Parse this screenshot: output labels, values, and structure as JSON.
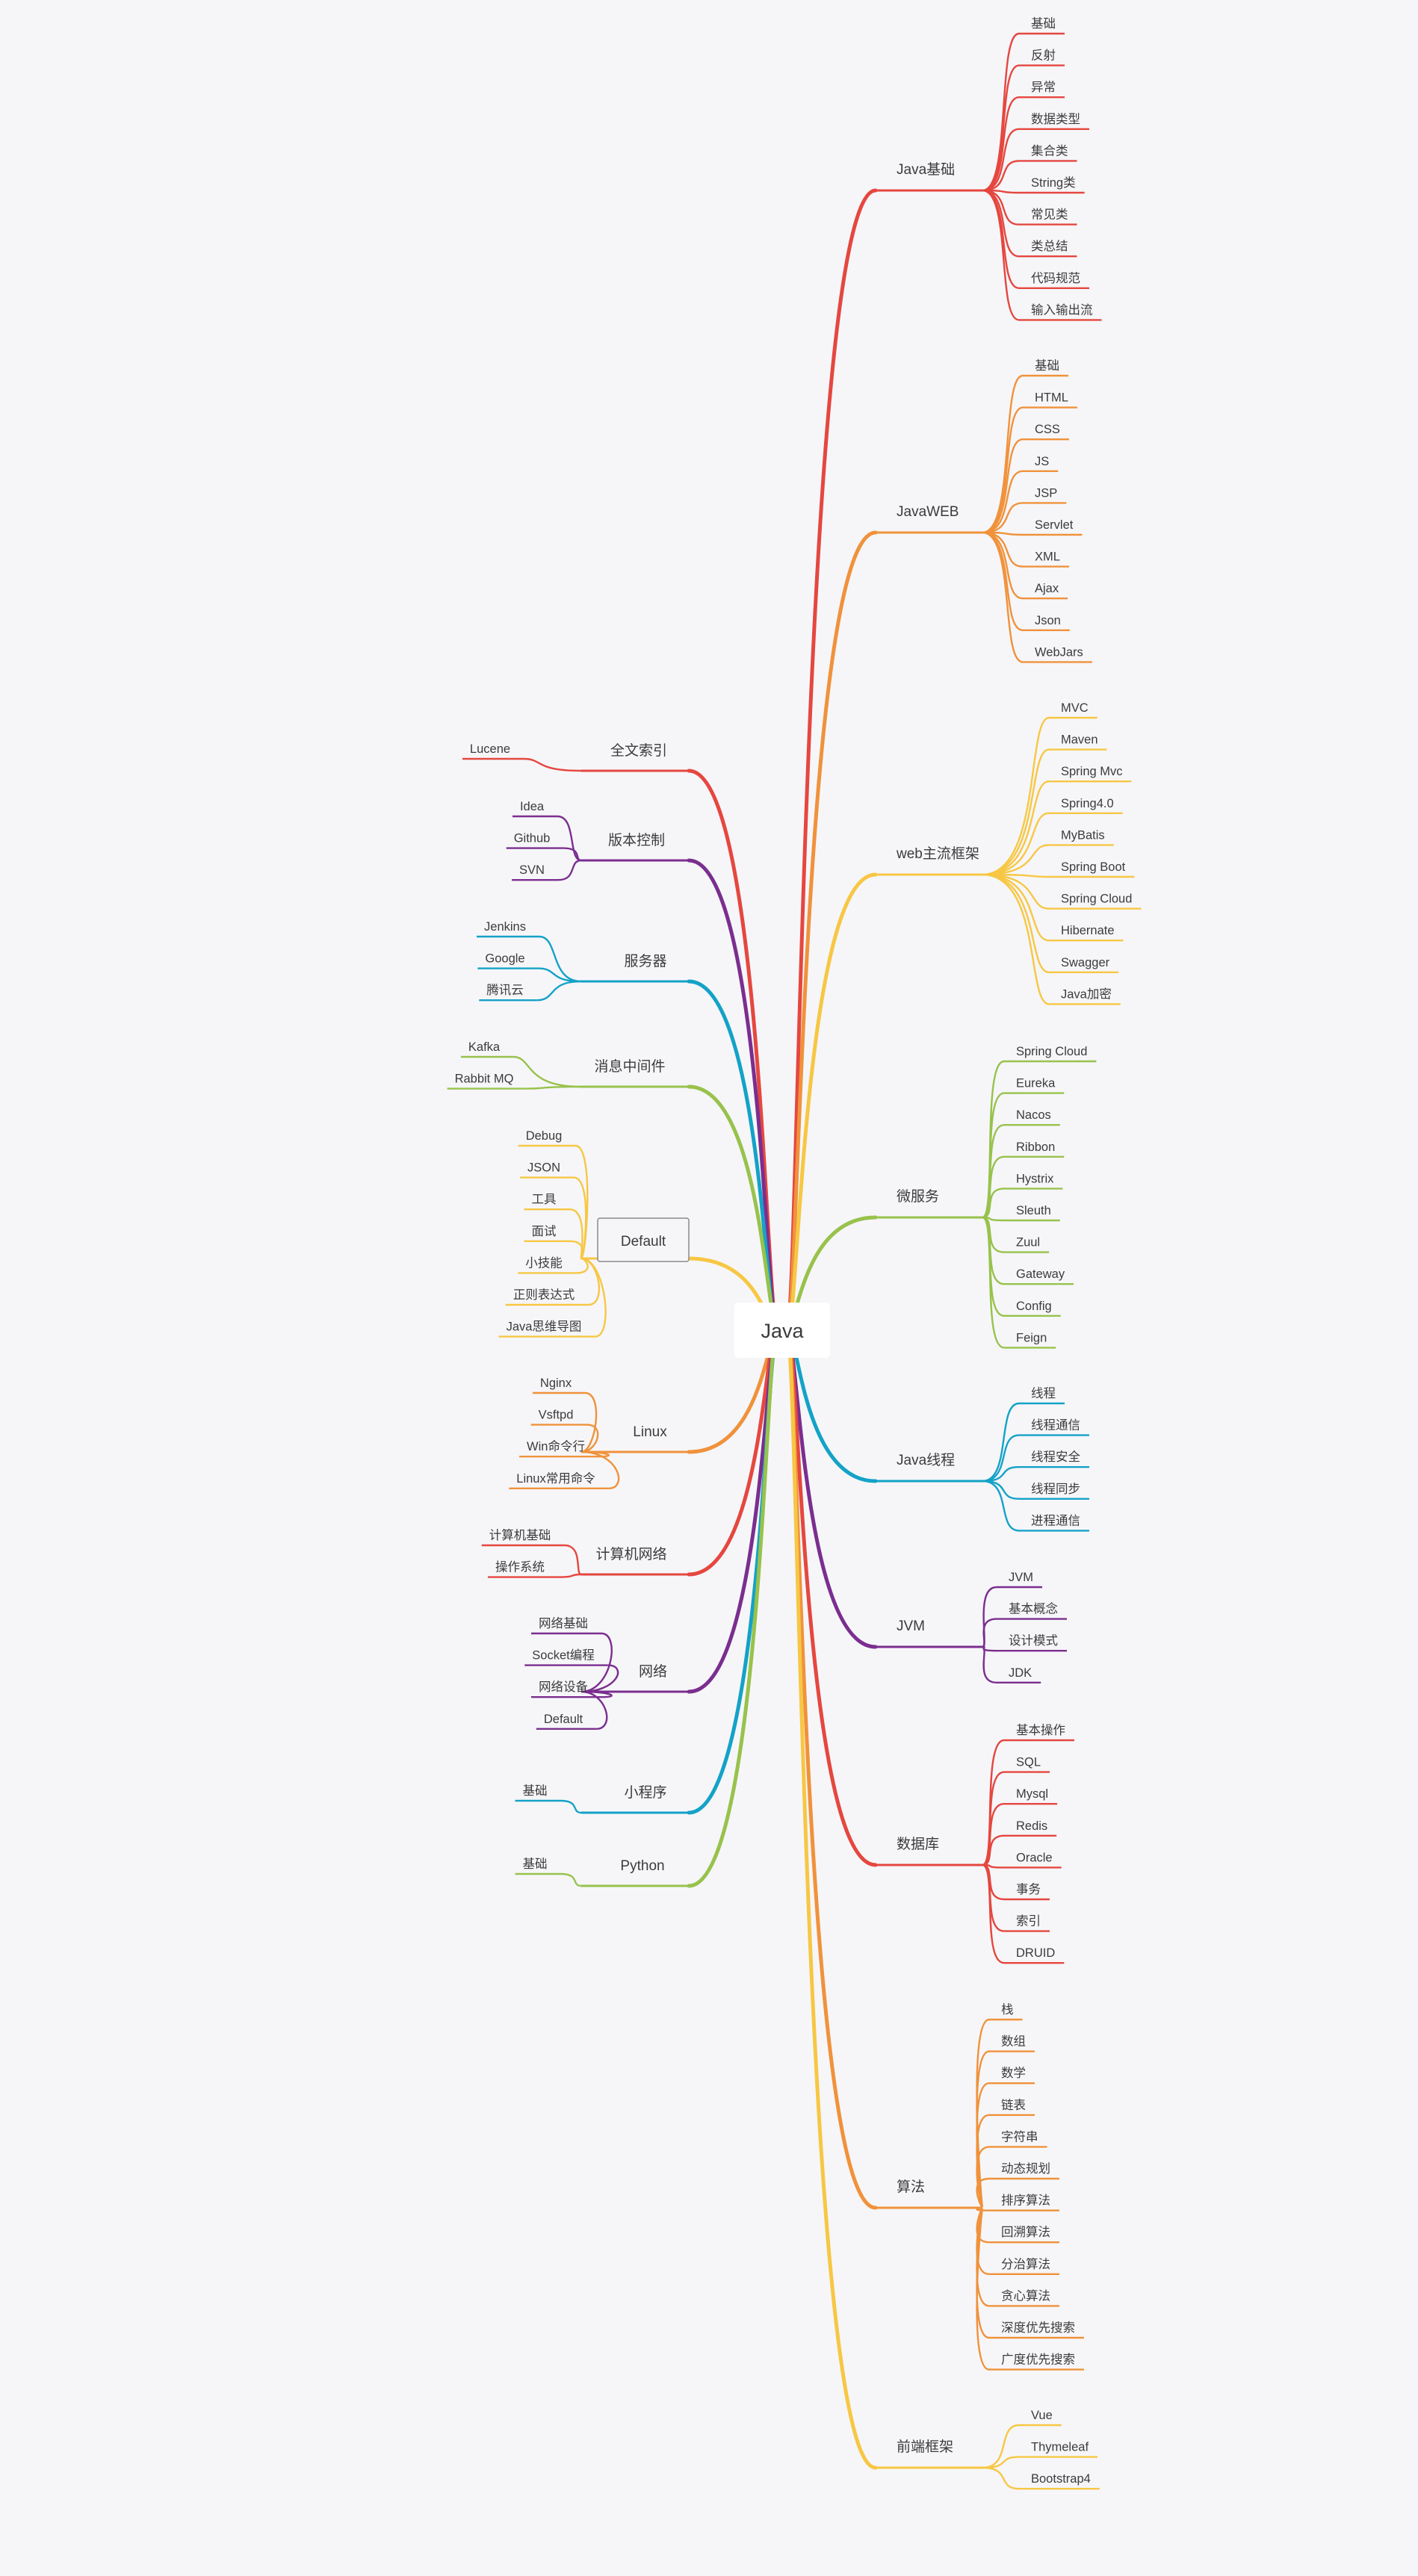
{
  "root": {
    "label": "Java"
  },
  "colors": {
    "red": "#e5473f",
    "orange": "#f0923b",
    "yellow": "#f7c744",
    "green": "#98c24c",
    "teal": "#14a2c7",
    "purple": "#7b2e8f",
    "background": "#f6f6f9",
    "text": "#3b3b3b"
  },
  "right_branches": [
    {
      "label": "Java基础",
      "color": "red",
      "children": [
        "基础",
        "反射",
        "异常",
        "数据类型",
        "集合类",
        "String类",
        "常见类",
        "类总结",
        "代码规范",
        "输入输出流"
      ]
    },
    {
      "label": "JavaWEB",
      "color": "orange",
      "children": [
        "基础",
        "HTML",
        "CSS",
        "JS",
        "JSP",
        "Servlet",
        "XML",
        "Ajax",
        "Json",
        "WebJars"
      ]
    },
    {
      "label": "web主流框架",
      "color": "yellow",
      "children": [
        "MVC",
        "Maven",
        "Spring Mvc",
        "Spring4.0",
        "MyBatis",
        "Spring Boot",
        "Spring Cloud",
        "Hibernate",
        "Swagger",
        "Java加密"
      ]
    },
    {
      "label": "微服务",
      "color": "green",
      "children": [
        "Spring Cloud",
        "Eureka",
        "Nacos",
        "Ribbon",
        "Hystrix",
        "Sleuth",
        "Zuul",
        "Gateway",
        "Config",
        "Feign"
      ]
    },
    {
      "label": "Java线程",
      "color": "teal",
      "children": [
        "线程",
        "线程通信",
        "线程安全",
        "线程同步",
        "进程通信"
      ]
    },
    {
      "label": "JVM",
      "color": "purple",
      "children": [
        "JVM",
        "基本概念",
        "设计模式",
        "JDK"
      ]
    },
    {
      "label": "数据库",
      "color": "red",
      "children": [
        "基本操作",
        "SQL",
        "Mysql",
        "Redis",
        "Oracle",
        "事务",
        "索引",
        "DRUID"
      ]
    },
    {
      "label": "算法",
      "color": "orange",
      "children": [
        "栈",
        "数组",
        "数学",
        "链表",
        "字符串",
        "动态规划",
        "排序算法",
        "回溯算法",
        "分治算法",
        "贪心算法",
        "深度优先搜索",
        "广度优先搜索"
      ]
    },
    {
      "label": "前端框架",
      "color": "yellow",
      "children": [
        "Vue",
        "Thymeleaf",
        "Bootstrap4"
      ]
    }
  ],
  "left_branches": [
    {
      "label": "全文索引",
      "color": "red",
      "children": [
        "Lucene"
      ]
    },
    {
      "label": "版本控制",
      "color": "purple",
      "children": [
        "Idea",
        "Github",
        "SVN"
      ]
    },
    {
      "label": "服务器",
      "color": "teal",
      "children": [
        "Jenkins",
        "Google",
        "腾讯云"
      ]
    },
    {
      "label": "消息中间件",
      "color": "green",
      "children": [
        "Kafka",
        "Rabbit MQ"
      ]
    },
    {
      "label": "Default",
      "color": "yellow",
      "boxed": true,
      "children": [
        "Debug",
        "JSON",
        "工具",
        "面试",
        "小技能",
        "正则表达式",
        "Java思维导图"
      ]
    },
    {
      "label": "Linux",
      "color": "orange",
      "children": [
        "Nginx",
        "Vsftpd",
        "Win命令行",
        "Linux常用命令"
      ]
    },
    {
      "label": "计算机网络",
      "color": "red",
      "children": [
        "计算机基础",
        "操作系统"
      ]
    },
    {
      "label": "网络",
      "color": "purple",
      "children": [
        "网络基础",
        "Socket编程",
        "网络设备",
        "Default"
      ]
    },
    {
      "label": "小程序",
      "color": "teal",
      "children": [
        "基础"
      ]
    },
    {
      "label": "Python",
      "color": "green",
      "children": [
        "基础"
      ]
    }
  ]
}
